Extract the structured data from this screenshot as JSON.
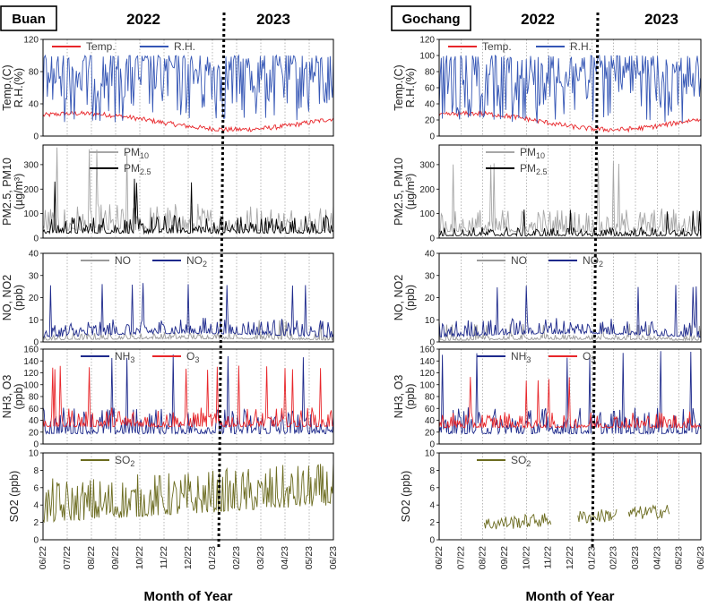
{
  "colors": {
    "temp": "#e8262a",
    "rh": "#3556b5",
    "pm10": "#a7a7a7",
    "pm25": "#000000",
    "no": "#9a9a9a",
    "no2": "#1e2a8c",
    "nh3": "#1e2a8c",
    "o3": "#e8262a",
    "so2": "#6b6b1f",
    "so2_label": "#6b6b1f"
  },
  "x_axis_title": "Month of Year",
  "chart_data": [
    {
      "site": "Buan",
      "type": "line",
      "years": [
        "2022",
        "2023"
      ],
      "x_tick_labels": [
        "06/22",
        "07/22",
        "08/22",
        "09/22",
        "10/22",
        "11/22",
        "12/22",
        "01/23",
        "02/23",
        "03/23",
        "04/23",
        "05/23",
        "06/23"
      ],
      "panels": [
        {
          "id": "met",
          "ylabel_lines": [
            "Temp.(C)",
            "R.H.(%)"
          ],
          "ylim": [
            0,
            120
          ],
          "yticks": [
            0,
            40,
            80,
            120
          ],
          "series": [
            {
              "name": "Temp.",
              "color_key": "temp",
              "range": [
                5,
                35
              ]
            },
            {
              "name": "R.H.",
              "color_key": "rh",
              "range": [
                30,
                100
              ]
            }
          ]
        },
        {
          "id": "pm",
          "ylabel_lines": [
            "PM2.5, PM10",
            "(µg/m³)"
          ],
          "ylim": [
            0,
            380
          ],
          "yticks": [
            0,
            100,
            200,
            300
          ],
          "series": [
            {
              "name": "PM10",
              "sub": "10",
              "base": "PM",
              "color_key": "pm10",
              "range": [
                0,
                380
              ]
            },
            {
              "name": "PM2.5",
              "sub": "2.5",
              "base": "PM",
              "color_key": "pm25",
              "range": [
                0,
                250
              ]
            }
          ]
        },
        {
          "id": "nox",
          "ylabel_lines": [
            "NO, NO2",
            "(ppb)"
          ],
          "ylim": [
            0,
            40
          ],
          "yticks": [
            0,
            10,
            20,
            30,
            40
          ],
          "series": [
            {
              "name": "NO",
              "color_key": "no",
              "range": [
                0,
                10
              ]
            },
            {
              "name": "NO2",
              "sub": "2",
              "base": "NO",
              "color_key": "no2",
              "range": [
                0,
                26
              ]
            }
          ]
        },
        {
          "id": "nh3o3",
          "ylabel_lines": [
            "NH3, O3",
            "(ppb)"
          ],
          "ylim": [
            0,
            160
          ],
          "yticks": [
            0,
            20,
            40,
            60,
            80,
            100,
            120,
            140,
            160
          ],
          "series": [
            {
              "name": "NH3",
              "sub": "3",
              "base": "NH",
              "color_key": "nh3",
              "range": [
                5,
                160
              ]
            },
            {
              "name": "O3",
              "sub": "3",
              "base": "O",
              "color_key": "o3",
              "range": [
                5,
                120
              ]
            }
          ]
        },
        {
          "id": "so2",
          "ylabel_lines": [
            "SO2 (ppb)"
          ],
          "ylim": [
            0,
            10
          ],
          "yticks": [
            0,
            2,
            4,
            6,
            8,
            10
          ],
          "series": [
            {
              "name": "SO2",
              "sub": "2",
              "base": "SO",
              "color_key": "so2",
              "range": [
                0,
                10
              ]
            }
          ]
        }
      ]
    },
    {
      "site": "Gochang",
      "type": "line",
      "years": [
        "2022",
        "2023"
      ],
      "x_tick_labels": [
        "06/22",
        "07/22",
        "08/22",
        "09/22",
        "10/22",
        "11/22",
        "12/22",
        "01/23",
        "02/23",
        "03/23",
        "04/23",
        "05/23",
        "06/23"
      ],
      "panels": [
        {
          "id": "met",
          "ylabel_lines": [
            "Temp.(C)",
            "R.H.(%)"
          ],
          "ylim": [
            0,
            120
          ],
          "yticks": [
            0,
            20,
            40,
            60,
            80,
            100,
            120
          ],
          "series": [
            {
              "name": "Temp.",
              "color_key": "temp",
              "range": [
                5,
                35
              ]
            },
            {
              "name": "R.H.",
              "color_key": "rh",
              "range": [
                30,
                100
              ]
            }
          ]
        },
        {
          "id": "pm",
          "ylabel_lines": [
            "PM2.5, PM10",
            "(µg/m³)"
          ],
          "ylim": [
            0,
            380
          ],
          "yticks": [
            0,
            100,
            200,
            300
          ],
          "series": [
            {
              "name": "PM10",
              "sub": "10",
              "base": "PM",
              "color_key": "pm10",
              "range": [
                0,
                330
              ]
            },
            {
              "name": "PM2.5",
              "sub": "2.5",
              "base": "PM",
              "color_key": "pm25",
              "range": [
                0,
                120
              ]
            }
          ]
        },
        {
          "id": "nox",
          "ylabel_lines": [
            "NO, NO2",
            "(ppb)"
          ],
          "ylim": [
            0,
            40
          ],
          "yticks": [
            0,
            10,
            20,
            30,
            40
          ],
          "series": [
            {
              "name": "NO",
              "color_key": "no",
              "range": [
                0,
                8
              ]
            },
            {
              "name": "NO2",
              "sub": "2",
              "base": "NO",
              "color_key": "no2",
              "range": [
                0,
                26
              ]
            }
          ]
        },
        {
          "id": "nh3o3",
          "ylabel_lines": [
            "NH3, O3",
            "(ppb)"
          ],
          "ylim": [
            0,
            160
          ],
          "yticks": [
            0,
            20,
            40,
            60,
            80,
            100,
            120,
            140,
            160
          ],
          "series": [
            {
              "name": "NH3",
              "sub": "3",
              "base": "NH",
              "color_key": "nh3",
              "range": [
                5,
                160
              ]
            },
            {
              "name": "O3",
              "sub": "3",
              "base": "O",
              "color_key": "o3",
              "range": [
                5,
                100
              ]
            }
          ]
        },
        {
          "id": "so2",
          "ylabel_lines": [
            "SO2 (ppb)"
          ],
          "ylim": [
            0,
            10
          ],
          "yticks": [
            0,
            2,
            4,
            6,
            8,
            10
          ],
          "series": [
            {
              "name": "SO2",
              "sub": "2",
              "base": "SO",
              "color_key": "so2",
              "range": [
                0,
                5
              ]
            }
          ]
        }
      ]
    }
  ]
}
